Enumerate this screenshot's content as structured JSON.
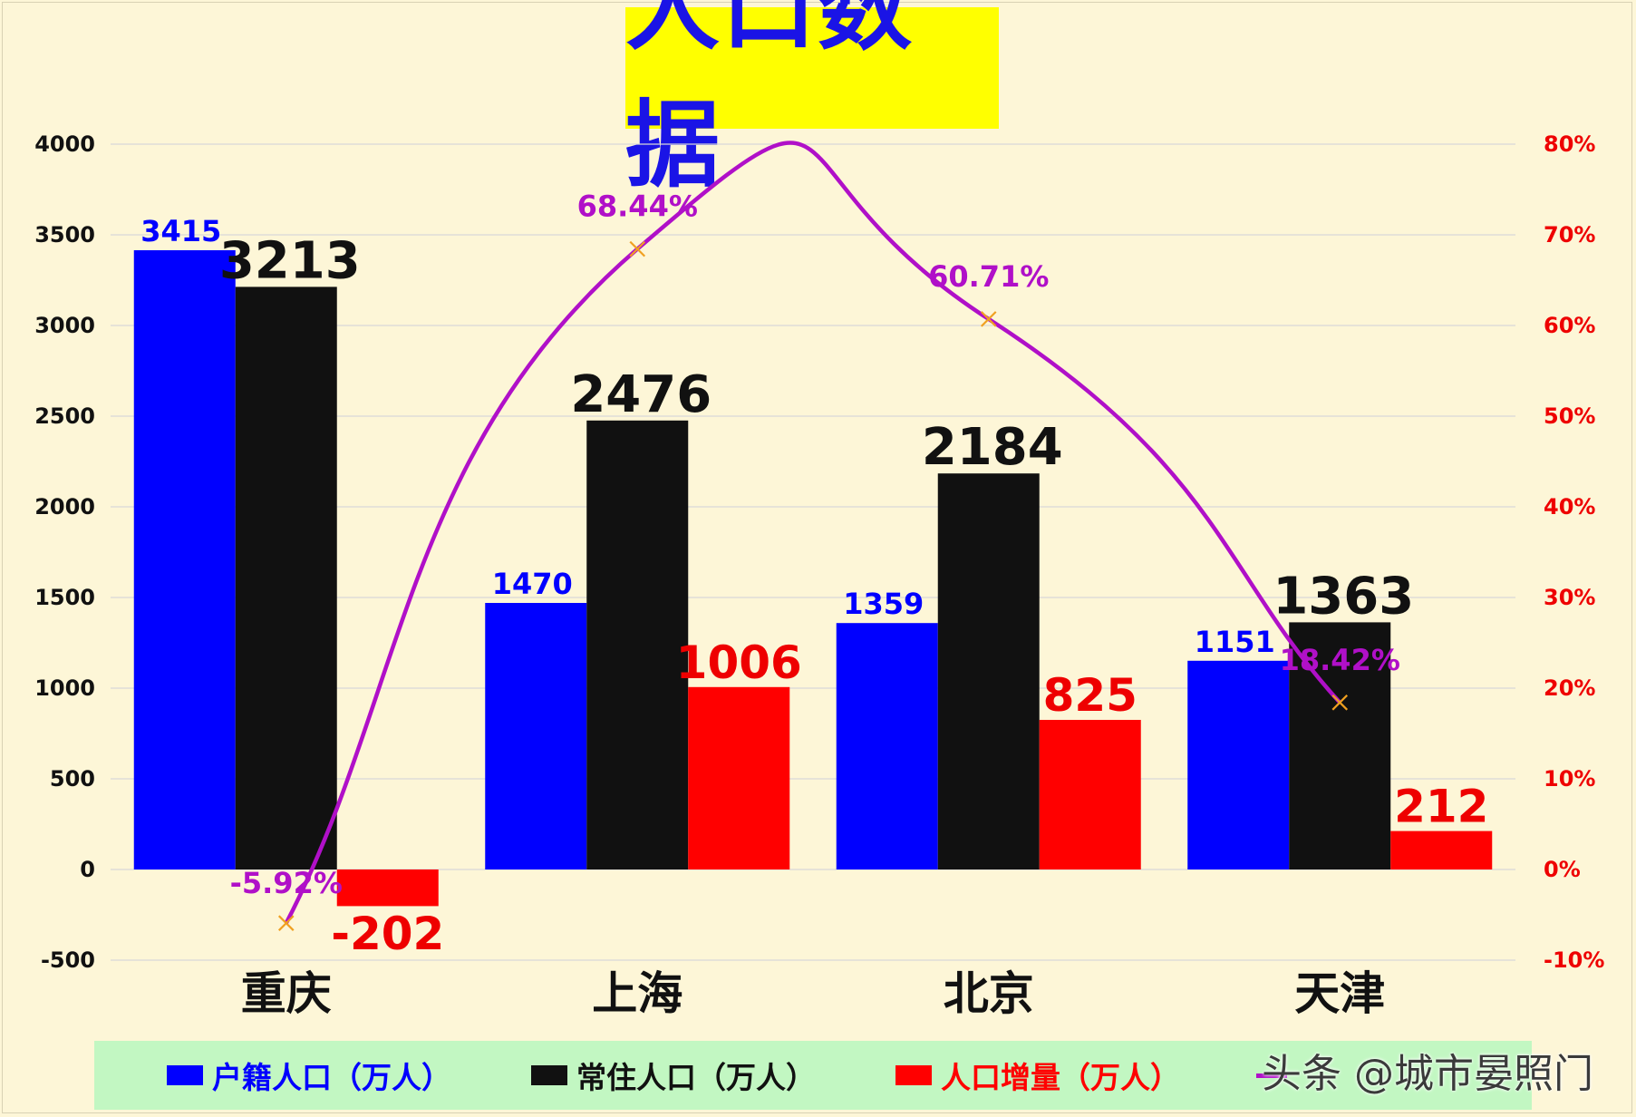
{
  "title": "人口数据",
  "watermark": "头条 @城市晏照门",
  "colors": {
    "background": "#fdf6d7",
    "title_bg": "#ffff00",
    "title_text": "#1a14e6",
    "registered": "#0000ff",
    "resident": "#111111",
    "increase": "#ff0000",
    "ratio_line": "#b010c8",
    "ratio_marker": "#f0a020",
    "legend_bg": "#c2f7c2"
  },
  "chart_data": {
    "type": "bar",
    "categories": [
      "重庆",
      "上海",
      "北京",
      "天津"
    ],
    "series": [
      {
        "name": "户籍人口（万人）",
        "type": "bar",
        "axis": "left",
        "values": [
          3415,
          1470,
          1359,
          1151
        ],
        "labels": [
          "3415",
          "1470",
          "1359",
          "1151"
        ],
        "color": "#0000ff"
      },
      {
        "name": "常住人口（万人）",
        "type": "bar",
        "axis": "left",
        "values": [
          3213,
          2476,
          2184,
          1363
        ],
        "labels": [
          "3213",
          "2476",
          "2184",
          "1363"
        ],
        "color": "#111111"
      },
      {
        "name": "人口增量（万人）",
        "type": "bar",
        "axis": "left",
        "values": [
          -202,
          1006,
          825,
          212
        ],
        "labels": [
          "-202",
          "1006",
          "825",
          "212"
        ],
        "color": "#ff0000"
      },
      {
        "name": "",
        "type": "line",
        "axis": "right",
        "values": [
          -5.92,
          68.44,
          60.71,
          18.42
        ],
        "labels": [
          "-5.92%",
          "68.44%",
          "60.71%",
          "18.42%"
        ],
        "color": "#b010c8"
      }
    ],
    "y_left": {
      "min": -500,
      "max": 4000,
      "ticks": [
        "-500",
        "0",
        "500",
        "1000",
        "1500",
        "2000",
        "2500",
        "3000",
        "3500",
        "4000"
      ]
    },
    "y_right": {
      "min": -10,
      "max": 80,
      "ticks": [
        "-10%",
        "0%",
        "10%",
        "20%",
        "30%",
        "40%",
        "50%",
        "60%",
        "70%",
        "80%"
      ]
    },
    "grid": true,
    "legend_position": "bottom"
  }
}
